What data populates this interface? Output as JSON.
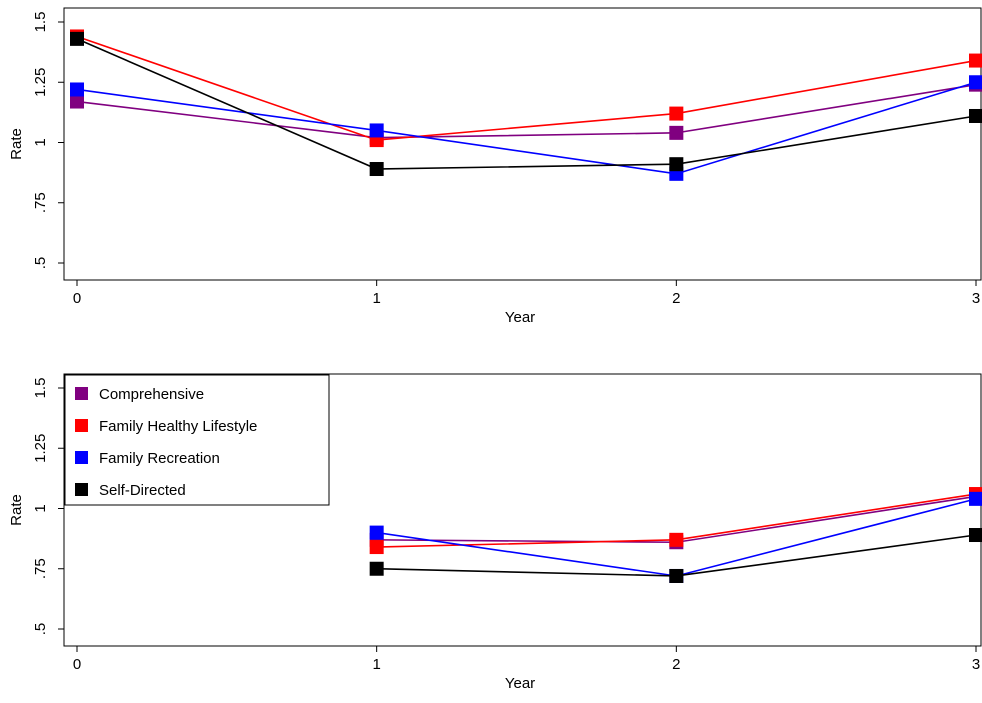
{
  "chart_data": [
    {
      "type": "line",
      "xlabel": "Year",
      "ylabel": "Rate",
      "x": [
        0,
        1,
        2,
        3
      ],
      "xticks": [
        "0",
        "1",
        "2",
        "3"
      ],
      "yticks": [
        ".5",
        ".75",
        "1",
        "1.25",
        "1.5"
      ],
      "ytick_values": [
        0.5,
        0.75,
        1.0,
        1.25,
        1.5
      ],
      "ylim": [
        0.5,
        1.5
      ],
      "xlim": [
        0,
        3
      ],
      "grid": false,
      "series": [
        {
          "name": "Comprehensive",
          "color": "#800080",
          "values": [
            1.17,
            1.02,
            1.04,
            1.24
          ]
        },
        {
          "name": "Family Healthy Lifestyle",
          "color": "#ff0000",
          "values": [
            1.44,
            1.01,
            1.12,
            1.34
          ]
        },
        {
          "name": "Family Recreation",
          "color": "#0000ff",
          "values": [
            1.22,
            1.05,
            0.87,
            1.25
          ]
        },
        {
          "name": "Self-Directed",
          "color": "#000000",
          "values": [
            1.43,
            0.89,
            0.91,
            1.11
          ]
        }
      ]
    },
    {
      "type": "line",
      "xlabel": "Year",
      "ylabel": "Rate",
      "x": [
        0,
        1,
        2,
        3
      ],
      "xticks": [
        "0",
        "1",
        "2",
        "3"
      ],
      "yticks": [
        ".5",
        ".75",
        "1",
        "1.25",
        "1.5"
      ],
      "ytick_values": [
        0.5,
        0.75,
        1.0,
        1.25,
        1.5
      ],
      "ylim": [
        0.5,
        1.5
      ],
      "xlim": [
        0,
        3
      ],
      "grid": false,
      "legend": "top-left",
      "series": [
        {
          "name": "Comprehensive",
          "color": "#800080",
          "values": [
            null,
            0.87,
            0.86,
            1.05
          ]
        },
        {
          "name": "Family Healthy Lifestyle",
          "color": "#ff0000",
          "values": [
            null,
            0.84,
            0.87,
            1.06
          ]
        },
        {
          "name": "Family Recreation",
          "color": "#0000ff",
          "values": [
            null,
            0.9,
            0.72,
            1.04
          ]
        },
        {
          "name": "Self-Directed",
          "color": "#000000",
          "values": [
            null,
            0.75,
            0.72,
            0.89
          ]
        }
      ]
    }
  ]
}
